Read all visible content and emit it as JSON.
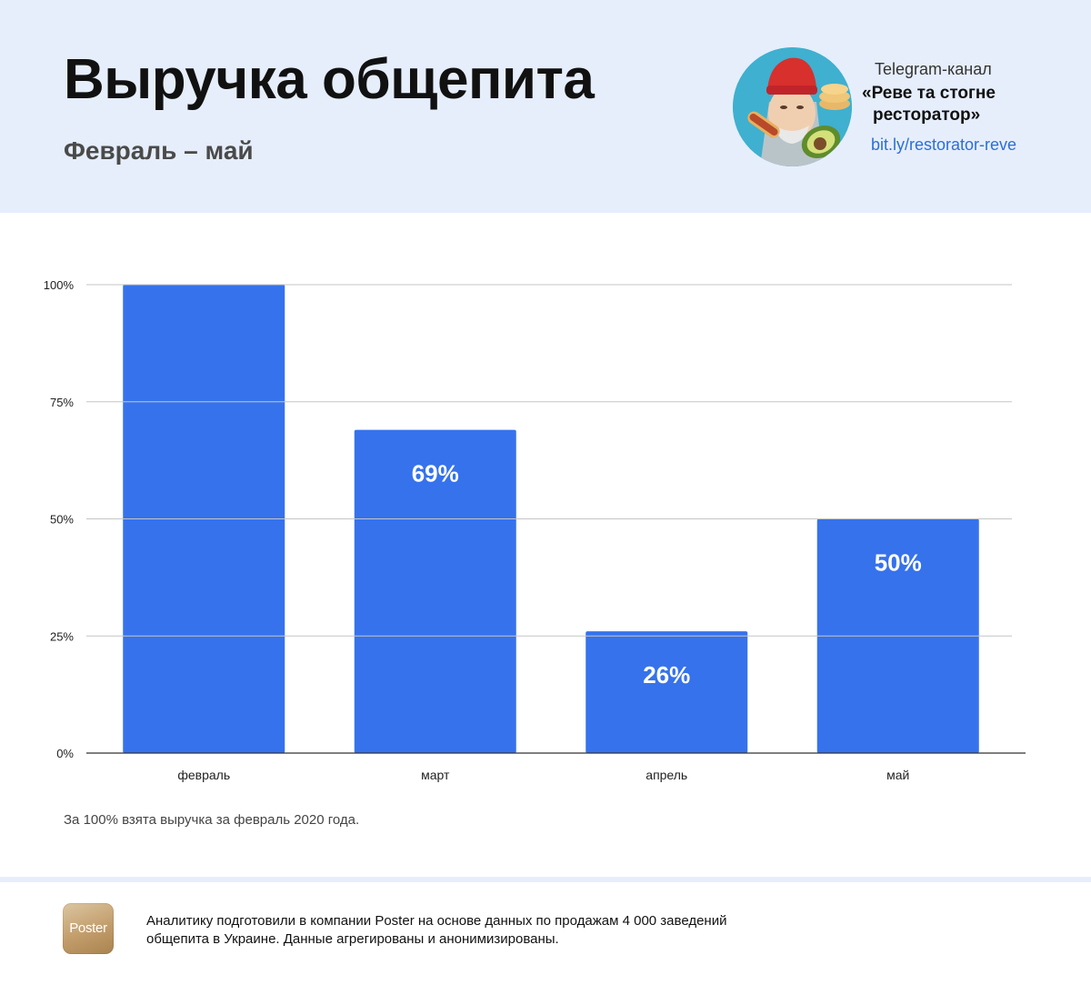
{
  "header": {
    "title": "Выручка общепита",
    "subtitle": "Февраль – май",
    "telegram": {
      "label": "Telegram-канал",
      "name_line1": "«Реве та стогне",
      "name_line2": "ресторатор»",
      "link": "bit.ly/restorator-reve"
    }
  },
  "chart_data": {
    "type": "bar",
    "categories": [
      "февраль",
      "март",
      "апрель",
      "май"
    ],
    "values": [
      100,
      69,
      26,
      50
    ],
    "data_labels": [
      "",
      "69%",
      "26%",
      "50%"
    ],
    "yticks": [
      "0%",
      "25%",
      "50%",
      "75%",
      "100%"
    ],
    "ylim": [
      0,
      100
    ],
    "grid": true,
    "bar_color": "#3672ec",
    "grid_color": "#c6c6c6"
  },
  "note": "За 100% взята выручка за февраль 2020 года.",
  "footer": {
    "logo_text": "Poster",
    "text_line1": "Аналитику подготовили в компании Poster на основе данных по продажам 4 000 заведений",
    "text_line2": "общепита в Украине. Данные агрегированы и анонимизированы."
  },
  "colors": {
    "header_bg": "#e6eefb",
    "link": "#2a6fd8"
  }
}
